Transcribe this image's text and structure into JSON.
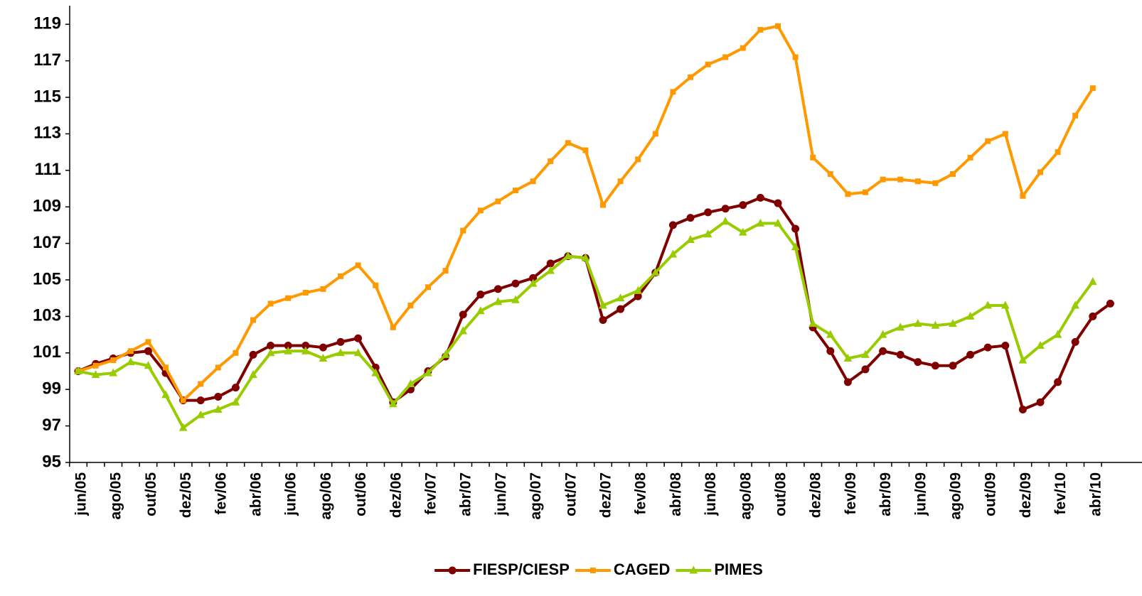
{
  "chart_data": {
    "type": "line",
    "categories": [
      "jun/05",
      null,
      "ago/05",
      null,
      "out/05",
      null,
      "dez/05",
      null,
      "fev/06",
      null,
      "abr/06",
      null,
      "jun/06",
      null,
      "ago/06",
      null,
      "out/06",
      null,
      "dez/06",
      null,
      "fev/07",
      null,
      "abr/07",
      null,
      "jun/07",
      null,
      "ago/07",
      null,
      "out/07",
      null,
      "dez/07",
      null,
      "fev/08",
      null,
      "abr/08",
      null,
      "jun/08",
      null,
      "ago/08",
      null,
      "out/08",
      null,
      "dez/08",
      null,
      "fev/09",
      null,
      "abr/09",
      null,
      "jun/09",
      null,
      "ago/09",
      null,
      "out/09",
      null,
      "dez/09",
      null,
      "fev/10",
      null,
      "abr/10",
      null
    ],
    "series": [
      {
        "name": "FIESP/CIESP",
        "color": "#800000",
        "marker": "circle",
        "values": [
          100.0,
          100.4,
          100.7,
          101.0,
          101.1,
          99.9,
          98.4,
          98.4,
          98.6,
          99.1,
          100.9,
          101.4,
          101.4,
          101.4,
          101.3,
          101.6,
          101.8,
          100.2,
          98.3,
          99.0,
          100.0,
          100.8,
          103.1,
          104.2,
          104.5,
          104.8,
          105.1,
          105.9,
          106.3,
          106.2,
          102.8,
          103.4,
          104.1,
          105.4,
          108.0,
          108.4,
          108.7,
          108.9,
          109.1,
          109.5,
          109.2,
          107.8,
          102.4,
          101.1,
          99.4,
          100.1,
          101.1,
          100.9,
          100.5,
          100.3,
          100.3,
          100.9,
          101.3,
          101.4,
          97.9,
          98.3,
          99.4,
          101.6,
          103.0,
          103.7
        ]
      },
      {
        "name": "CAGED",
        "color": "#FF9900",
        "marker": "square",
        "values": [
          100.0,
          100.3,
          100.6,
          101.1,
          101.6,
          100.2,
          98.4,
          99.3,
          100.2,
          101.0,
          102.8,
          103.7,
          104.0,
          104.3,
          104.5,
          105.2,
          105.8,
          104.7,
          102.4,
          103.6,
          104.6,
          105.5,
          107.7,
          108.8,
          109.3,
          109.9,
          110.4,
          111.5,
          112.5,
          112.1,
          109.1,
          110.4,
          111.6,
          113.0,
          115.3,
          116.1,
          116.8,
          117.2,
          117.7,
          118.7,
          118.9,
          117.2,
          111.7,
          110.8,
          109.7,
          109.8,
          110.5,
          110.5,
          110.4,
          110.3,
          110.8,
          111.7,
          112.6,
          113.0,
          109.6,
          110.9,
          112.0,
          114.0,
          115.5,
          null
        ]
      },
      {
        "name": "PIMES",
        "color": "#99CC00",
        "marker": "triangle",
        "values": [
          100.0,
          99.8,
          99.9,
          100.5,
          100.3,
          98.7,
          96.9,
          97.6,
          97.9,
          98.3,
          99.8,
          101.0,
          101.1,
          101.1,
          100.7,
          101.0,
          101.0,
          99.9,
          98.2,
          99.3,
          99.9,
          100.9,
          102.2,
          103.3,
          103.8,
          103.9,
          104.8,
          105.5,
          106.3,
          106.2,
          103.6,
          104.0,
          104.4,
          105.4,
          106.4,
          107.2,
          107.5,
          108.2,
          107.6,
          108.1,
          108.1,
          106.8,
          102.6,
          102.0,
          100.7,
          100.9,
          102.0,
          102.4,
          102.6,
          102.5,
          102.6,
          103.0,
          103.6,
          103.6,
          100.6,
          101.4,
          102.0,
          103.6,
          104.9,
          null
        ]
      }
    ],
    "ylim": [
      95,
      120
    ],
    "yticks": [
      95,
      97,
      99,
      101,
      103,
      105,
      107,
      109,
      111,
      113,
      115,
      117,
      119
    ],
    "legend": "bottom"
  }
}
